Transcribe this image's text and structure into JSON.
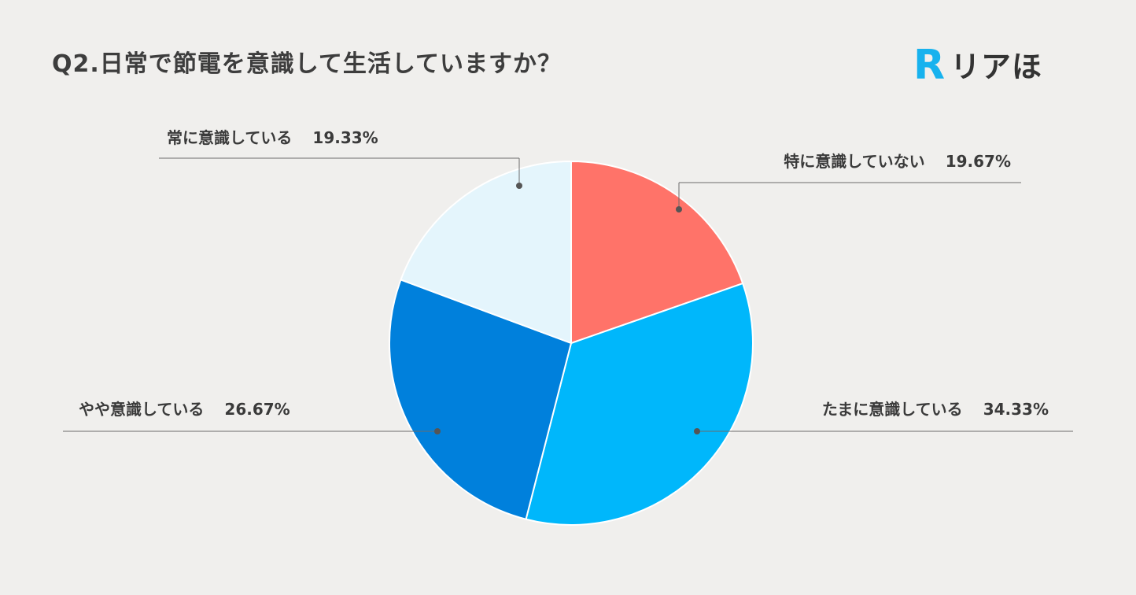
{
  "header": {
    "title": "Q2.日常で節電を意識して生活していますか？",
    "logo_text": "リアほ",
    "logo_letter": "R"
  },
  "colors": {
    "background": "#f0efed",
    "logo_accent": "#17b2ee"
  },
  "chart_data": {
    "type": "pie",
    "title": "Q2.日常で節電を意識して生活していますか？",
    "start_angle_deg": 0,
    "direction": "clockwise",
    "slices": [
      {
        "label": "特に意識していない",
        "value": 19.67,
        "display": "19.67%",
        "color": "#ff7369"
      },
      {
        "label": "たまに意識している",
        "value": 34.33,
        "display": "34.33%",
        "color": "#00b7fb"
      },
      {
        "label": "やや意識している",
        "value": 26.67,
        "display": "26.67%",
        "color": "#0080dc"
      },
      {
        "label": "常に意識している",
        "value": 19.33,
        "display": "19.33%",
        "color": "#e4f5fc"
      }
    ]
  }
}
